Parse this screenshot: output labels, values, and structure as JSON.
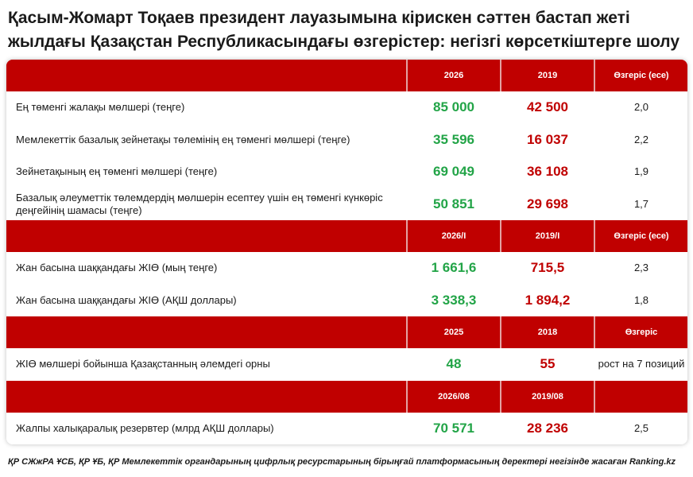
{
  "title": "Қасым-Жомарт Тоқаев президент лауазымына кірискен сәттен бастап жеті жылдағы Қазақстан Республикасындағы өзгерістер: негізгі көрсеткіштерге шолу",
  "sections": [
    {
      "headers": [
        "2026",
        "2019",
        "Өзгеріс (есе)"
      ],
      "rows": [
        {
          "label": "Ең төменгі жалақы мөлшері (теңге)",
          "current": "85 000",
          "previous": "42 500",
          "change": "2,0"
        },
        {
          "label": "Мемлекеттік базалық зейнетақы төлемінің ең төменгі мөлшері (теңге)",
          "current": "35 596",
          "previous": "16 037",
          "change": "2,2"
        },
        {
          "label": "Зейнетақының ең төменгі мөлшері (теңге)",
          "current": "69 049",
          "previous": "36 108",
          "change": "1,9"
        },
        {
          "label": "Базалық әлеуметтік төлемдердің мөлшерін есептеу үшін ең төменгі күнкөріс деңгейінің шамасы (теңге)",
          "current": "50 851",
          "previous": "29 698",
          "change": "1,7"
        }
      ]
    },
    {
      "headers": [
        "2026/I",
        "2019/I",
        "Өзгеріс (есе)"
      ],
      "rows": [
        {
          "label": "Жан басына шаққандағы ЖІӨ (мың теңге)",
          "current": "1 661,6",
          "previous": "715,5",
          "change": "2,3"
        },
        {
          "label": "Жан басына шаққандағы ЖІӨ (АҚШ доллары)",
          "current": "3 338,3",
          "previous": "1 894,2",
          "change": "1,8"
        }
      ]
    },
    {
      "headers": [
        "2025",
        "2018",
        "Өзгеріс"
      ],
      "rows": [
        {
          "label": "ЖІӨ мөлшері бойынша Қазақстанның әлемдегі орны",
          "current": "48",
          "previous": "55",
          "change": "рост на 7 позиций"
        }
      ]
    },
    {
      "headers": [
        "2026/08",
        "2019/08",
        ""
      ],
      "rows": [
        {
          "label": "Жалпы халықаралық резервтер (млрд АҚШ доллары)",
          "current": "70 571",
          "previous": "28 236",
          "change": "2,5"
        }
      ]
    }
  ],
  "footer": "ҚР СЖжРА ҰСБ, ҚР ҰБ, ҚР Мемлекеттік органдарының цифрлық ресурстарының бірыңғай платформасының деректері негізінде жасаған Ranking.kz",
  "colors": {
    "header_red": "#c00000",
    "value_green": "#22a447",
    "value_red": "#c00000"
  }
}
